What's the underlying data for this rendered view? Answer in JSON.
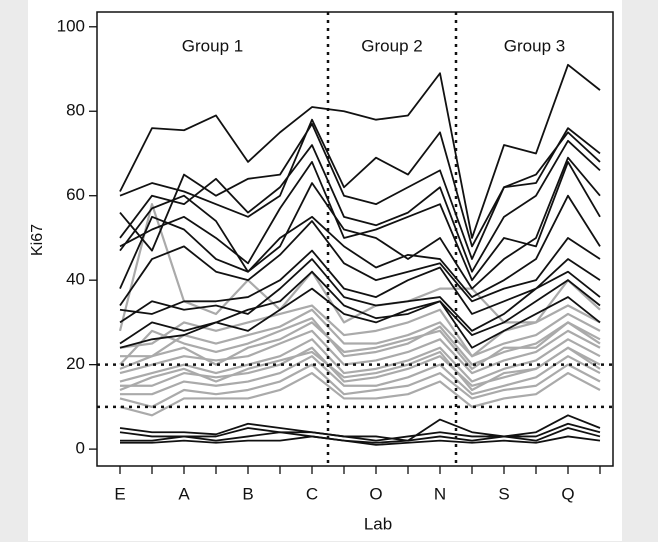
{
  "chart_data": {
    "type": "line",
    "x_label": "Lab",
    "y_label": "Ki67",
    "annotations": [
      "Group 1",
      "Group 2",
      "Group 3"
    ],
    "categories": [
      "E",
      null,
      "A",
      null,
      "B",
      null,
      "C",
      null,
      "O",
      null,
      "N",
      null,
      "S",
      null,
      "Q",
      null
    ],
    "ylim": [
      -4,
      103.5
    ],
    "yticks": [
      0,
      20,
      40,
      60,
      80,
      100
    ],
    "hlines": [
      20,
      10
    ],
    "vlines": [
      6.5,
      10.5
    ],
    "series": [
      {
        "color": "#aaaaaa",
        "values": [
          28,
          58,
          35,
          32,
          40,
          33,
          42,
          30,
          34,
          35,
          38,
          38,
          30,
          30,
          40,
          33
        ]
      },
      {
        "color": "#aaaaaa",
        "values": [
          24,
          25,
          30,
          28,
          30,
          32,
          34,
          27,
          28,
          30,
          33,
          22,
          28,
          30,
          34,
          30
        ]
      },
      {
        "color": "#aaaaaa",
        "values": [
          22,
          22,
          27,
          25,
          27,
          29,
          33,
          25,
          25,
          27,
          30,
          22,
          25,
          27,
          32,
          28
        ]
      },
      {
        "color": "#aaaaaa",
        "values": [
          20,
          28,
          25,
          23,
          25,
          28,
          31,
          22,
          23,
          25,
          29,
          20,
          23,
          25,
          30,
          26
        ]
      },
      {
        "color": "#aaaaaa",
        "values": [
          18,
          20,
          22,
          21,
          22,
          25,
          28,
          20,
          21,
          23,
          26,
          18,
          21,
          23,
          28,
          24
        ]
      },
      {
        "color": "#aaaaaa",
        "values": [
          16,
          18,
          20,
          18,
          20,
          22,
          26,
          18,
          19,
          21,
          24,
          16,
          19,
          21,
          26,
          22
        ]
      },
      {
        "color": "#aaaaaa",
        "values": [
          15,
          15,
          18,
          17,
          18,
          20,
          24,
          16,
          17,
          19,
          22,
          15,
          17,
          19,
          24,
          20
        ]
      },
      {
        "color": "#aaaaaa",
        "values": [
          13,
          13,
          16,
          15,
          16,
          18,
          22,
          15,
          15,
          17,
          20,
          13,
          15,
          17,
          22,
          18
        ]
      },
      {
        "color": "#aaaaaa",
        "values": [
          12,
          10,
          14,
          13,
          14,
          16,
          20,
          13,
          14,
          15,
          18,
          12,
          14,
          15,
          20,
          16
        ]
      },
      {
        "color": "#aaaaaa",
        "values": [
          10,
          8,
          12,
          12,
          12,
          14,
          18,
          12,
          12,
          13,
          16,
          10,
          12,
          13,
          18,
          14
        ]
      },
      {
        "color": "#aaaaaa",
        "values": [
          19,
          22,
          24,
          20,
          24,
          26,
          30,
          23,
          24,
          26,
          28,
          19,
          24,
          24,
          30,
          25
        ]
      },
      {
        "color": "#aaaaaa",
        "values": [
          14,
          17,
          19,
          16,
          19,
          21,
          23,
          17,
          18,
          20,
          23,
          14,
          18,
          19,
          24,
          19
        ]
      },
      {
        "color": "#111111",
        "values": [
          61,
          76,
          75.5,
          79,
          68,
          75,
          81,
          80,
          78,
          79,
          89,
          50,
          72,
          70,
          91,
          85
        ]
      },
      {
        "color": "#111111",
        "values": [
          60,
          63,
          61,
          58,
          55,
          60,
          78,
          62,
          69,
          65,
          75,
          48,
          62,
          63,
          76,
          70
        ]
      },
      {
        "color": "#111111",
        "values": [
          56,
          47,
          65,
          60,
          64,
          65,
          77,
          60,
          58,
          62,
          66,
          45,
          62,
          65,
          75,
          68
        ]
      },
      {
        "color": "#111111",
        "values": [
          50,
          60,
          58,
          64,
          56,
          62,
          72,
          55,
          53,
          56,
          62,
          42,
          55,
          60,
          73,
          66
        ]
      },
      {
        "color": "#111111",
        "values": [
          48,
          52,
          55,
          50,
          44,
          57,
          68,
          50,
          52,
          55,
          58,
          40,
          50,
          48,
          68,
          55
        ]
      },
      {
        "color": "#111111",
        "values": [
          47,
          57,
          60,
          54,
          42,
          48,
          63,
          52,
          50,
          45,
          50,
          38,
          45,
          50,
          69,
          60
        ]
      },
      {
        "color": "#111111",
        "values": [
          38,
          55,
          52,
          45,
          42,
          50,
          55,
          48,
          43,
          46,
          45,
          36,
          40,
          45,
          60,
          48
        ]
      },
      {
        "color": "#111111",
        "values": [
          34,
          45,
          48,
          42,
          40,
          46,
          54,
          44,
          40,
          42,
          44,
          35,
          38,
          40,
          50,
          45
        ]
      },
      {
        "color": "#111111",
        "values": [
          33,
          32,
          35,
          35,
          36,
          40,
          47,
          38,
          36,
          40,
          43,
          32,
          35,
          38,
          45,
          40
        ]
      },
      {
        "color": "#111111",
        "values": [
          30,
          35,
          33,
          34,
          32,
          38,
          45,
          36,
          34,
          35,
          36,
          28,
          32,
          38,
          42,
          36
        ]
      },
      {
        "color": "#111111",
        "values": [
          25,
          30,
          28,
          30,
          33,
          35,
          42,
          34,
          31,
          32,
          35,
          27,
          30,
          35,
          40,
          34
        ]
      },
      {
        "color": "#111111",
        "values": [
          24,
          26,
          27,
          30,
          28,
          33,
          38,
          32,
          30,
          33,
          35,
          24,
          28,
          32,
          36,
          30
        ]
      },
      {
        "color": "#111111",
        "values": [
          5,
          4,
          4,
          3.5,
          6,
          5,
          4,
          3,
          3,
          2,
          7,
          4,
          3,
          4,
          8,
          5
        ]
      },
      {
        "color": "#111111",
        "values": [
          4,
          3,
          3,
          3,
          5,
          4,
          4,
          3,
          2,
          3,
          4,
          3,
          3,
          3,
          6,
          4
        ]
      },
      {
        "color": "#111111",
        "values": [
          2,
          2,
          3,
          2,
          3,
          4,
          3,
          2,
          1.5,
          2,
          3,
          2,
          3,
          2,
          5,
          3
        ]
      },
      {
        "color": "#111111",
        "values": [
          1.5,
          1.5,
          2,
          1.5,
          2,
          2,
          3,
          2,
          1,
          1.5,
          2,
          1.5,
          2,
          1.5,
          3,
          2
        ]
      }
    ]
  }
}
